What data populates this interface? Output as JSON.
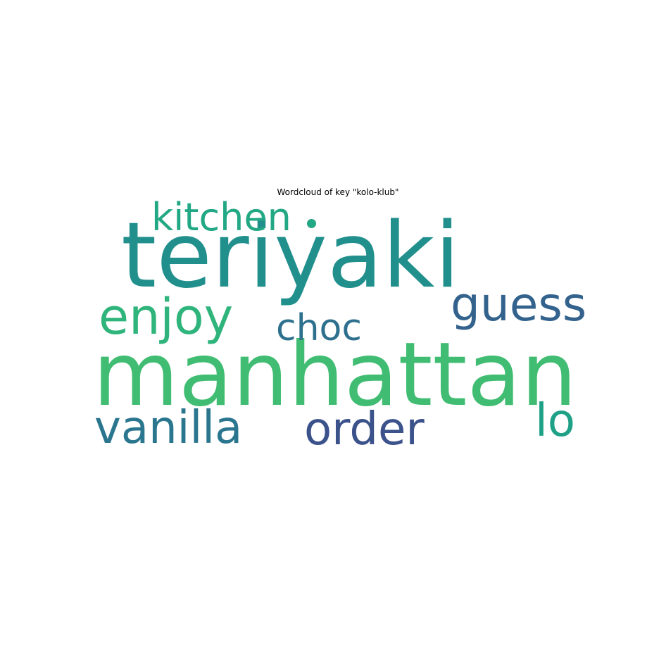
{
  "chart_data": {
    "type": "wordcloud",
    "title": "Wordcloud of key \"kolo-klub\"",
    "words": [
      {
        "text": "manhattan",
        "weight": 100,
        "color": "#40bd72"
      },
      {
        "text": "teriyaki",
        "weight": 98,
        "color": "#21908d"
      },
      {
        "text": "kitchen",
        "weight": 42,
        "color": "#22a884"
      },
      {
        "text": "enjoy",
        "weight": 55,
        "color": "#2fb47c"
      },
      {
        "text": "guess",
        "weight": 52,
        "color": "#33638d"
      },
      {
        "text": "choc",
        "weight": 41,
        "color": "#2d708e"
      },
      {
        "text": "vanilla",
        "weight": 50,
        "color": "#2a768e"
      },
      {
        "text": "order",
        "weight": 50,
        "color": "#3b528b"
      },
      {
        "text": "lo",
        "weight": 50,
        "color": "#1fa188"
      }
    ]
  }
}
